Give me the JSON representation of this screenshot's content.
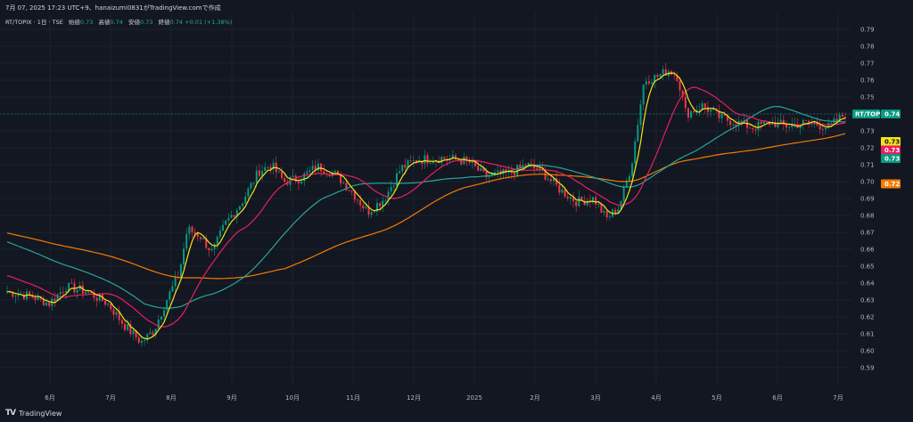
{
  "header": {
    "top_line": "7月 07, 2025 17:23 UTC+9、hanaizumi0831がTradingView.comで作成",
    "symbol": "RT/TOPIX · 1日 · TSE",
    "open_label": "始値",
    "open_value": "0.73",
    "high_label": "高値",
    "high_value": "0.74",
    "low_label": "安値",
    "low_value": "0.73",
    "close_label": "終値",
    "close_value": "0.74",
    "change": "+0.01 (+1.38%)"
  },
  "footer": {
    "logo_mark": "TV",
    "brand": "TradingView"
  },
  "price_tags": [
    {
      "label": "RT/TOPIX",
      "value": "0.74",
      "price": 0.74,
      "color": "#089981",
      "text_color": "#ffffff"
    },
    {
      "label": "",
      "value": "0.73",
      "price": 0.73,
      "color": "#f5e21b",
      "text_color": "#131722"
    },
    {
      "label": "",
      "value": "0.73",
      "price": 0.73,
      "color": "#e91e63",
      "text_color": "#ffffff"
    },
    {
      "label": "",
      "value": "0.73",
      "price": 0.73,
      "color": "#089981",
      "text_color": "#ffffff"
    },
    {
      "label": "",
      "value": "0.72",
      "price": 0.72,
      "color": "#f57c00",
      "text_color": "#ffffff"
    }
  ],
  "colors": {
    "background": "#131722",
    "grid": "#1e222d",
    "up": "#089981",
    "down": "#f23645",
    "ma_fast": "#f5e21b",
    "ma_mid": "#e91e63",
    "ma_slow": "#26a69a",
    "ma_long": "#f57c00"
  },
  "chart_data": {
    "type": "candlestick",
    "ylim": [
      0.58,
      0.8
    ],
    "y_ticks": [
      "0.79",
      "0.78",
      "0.77",
      "0.76",
      "0.75",
      "0.74",
      "0.73",
      "0.72",
      "0.71",
      "0.70",
      "0.69",
      "0.68",
      "0.67",
      "0.66",
      "0.65",
      "0.64",
      "0.63",
      "0.62",
      "0.61",
      "0.60",
      "0.59"
    ],
    "x_ticks": [
      "6月",
      "7月",
      "8月",
      "9月",
      "10月",
      "11月",
      "12月",
      "2025",
      "2月",
      "3月",
      "4月",
      "5月",
      "6月",
      "7月"
    ],
    "price_anchors": [
      {
        "t": 0,
        "p": 0.635
      },
      {
        "t": 0.03,
        "p": 0.632
      },
      {
        "t": 0.05,
        "p": 0.628
      },
      {
        "t": 0.07,
        "p": 0.638
      },
      {
        "t": 0.095,
        "p": 0.635
      },
      {
        "t": 0.12,
        "p": 0.628
      },
      {
        "t": 0.14,
        "p": 0.615
      },
      {
        "t": 0.16,
        "p": 0.605
      },
      {
        "t": 0.175,
        "p": 0.612
      },
      {
        "t": 0.19,
        "p": 0.63
      },
      {
        "t": 0.205,
        "p": 0.645
      },
      {
        "t": 0.215,
        "p": 0.672
      },
      {
        "t": 0.23,
        "p": 0.668
      },
      {
        "t": 0.245,
        "p": 0.658
      },
      {
        "t": 0.26,
        "p": 0.675
      },
      {
        "t": 0.28,
        "p": 0.688
      },
      {
        "t": 0.3,
        "p": 0.706
      },
      {
        "t": 0.315,
        "p": 0.71
      },
      {
        "t": 0.33,
        "p": 0.7
      },
      {
        "t": 0.35,
        "p": 0.702
      },
      {
        "t": 0.37,
        "p": 0.709
      },
      {
        "t": 0.39,
        "p": 0.705
      },
      {
        "t": 0.41,
        "p": 0.695
      },
      {
        "t": 0.43,
        "p": 0.682
      },
      {
        "t": 0.45,
        "p": 0.69
      },
      {
        "t": 0.47,
        "p": 0.708
      },
      {
        "t": 0.49,
        "p": 0.713
      },
      {
        "t": 0.52,
        "p": 0.714
      },
      {
        "t": 0.55,
        "p": 0.712
      },
      {
        "t": 0.57,
        "p": 0.703
      },
      {
        "t": 0.6,
        "p": 0.705
      },
      {
        "t": 0.62,
        "p": 0.71
      },
      {
        "t": 0.64,
        "p": 0.705
      },
      {
        "t": 0.66,
        "p": 0.695
      },
      {
        "t": 0.68,
        "p": 0.688
      },
      {
        "t": 0.7,
        "p": 0.69
      },
      {
        "t": 0.715,
        "p": 0.678
      },
      {
        "t": 0.73,
        "p": 0.685
      },
      {
        "t": 0.745,
        "p": 0.71
      },
      {
        "t": 0.76,
        "p": 0.76
      },
      {
        "t": 0.775,
        "p": 0.762
      },
      {
        "t": 0.79,
        "p": 0.766
      },
      {
        "t": 0.8,
        "p": 0.762
      },
      {
        "t": 0.81,
        "p": 0.74
      },
      {
        "t": 0.83,
        "p": 0.745
      },
      {
        "t": 0.85,
        "p": 0.738
      },
      {
        "t": 0.87,
        "p": 0.735
      },
      {
        "t": 0.89,
        "p": 0.732
      },
      {
        "t": 0.91,
        "p": 0.735
      },
      {
        "t": 0.93,
        "p": 0.733
      },
      {
        "t": 0.96,
        "p": 0.735
      },
      {
        "t": 0.98,
        "p": 0.732
      },
      {
        "t": 1.0,
        "p": 0.74
      }
    ],
    "ma_fast_period": 5,
    "ma_mid_period": 20,
    "ma_slow_period": 50,
    "ma_long_period": 100,
    "ma_long_start": 0.67,
    "ma_slow_start": 0.665,
    "ma_mid_start": 0.645
  }
}
